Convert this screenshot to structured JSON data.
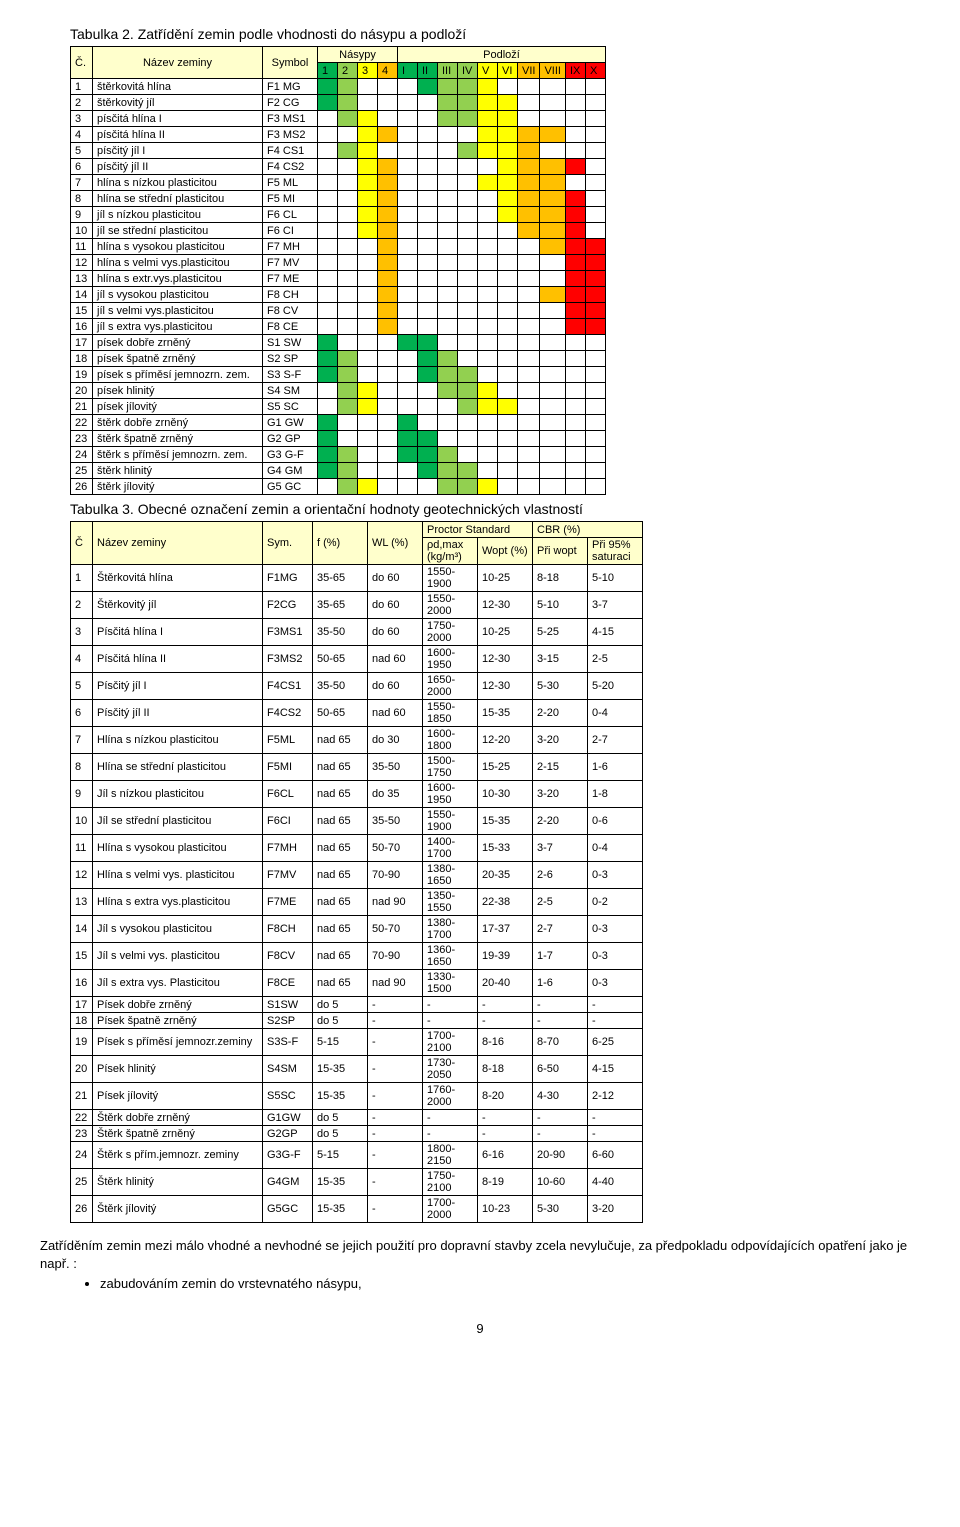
{
  "table2": {
    "caption": "Tabulka 2. Zatřídění zemin podle vhodnosti do násypu a podloží",
    "header": {
      "c": "Č.",
      "name": "Název zeminy",
      "sym": "Symbol",
      "nasypy": "Násypy",
      "podlozi": "Podloží",
      "cols_n": [
        "1",
        "2",
        "3",
        "4"
      ],
      "cols_p": [
        "I",
        "II",
        "III",
        "IV",
        "V",
        "VI",
        "VII",
        "VIII",
        "IX",
        "X"
      ]
    },
    "nasypy_colors": [
      "#00b050",
      "#92d050",
      "#ffff00",
      "#ffc000"
    ],
    "podlozi_colors": [
      "#00b050",
      "#00b050",
      "#92d050",
      "#92d050",
      "#ffff00",
      "#ffff00",
      "#ffc000",
      "#ffc000",
      "#ff0000",
      "#ff0000"
    ],
    "rows": [
      {
        "n": "1",
        "name": "štěrkovitá hlína",
        "s": "F1 MG",
        "na": [
          1,
          1,
          0,
          0
        ],
        "po": [
          0,
          1,
          1,
          1,
          1,
          0,
          0,
          0,
          0,
          0
        ]
      },
      {
        "n": "2",
        "name": "štěrkovitý jíl",
        "s": "F2 CG",
        "na": [
          1,
          1,
          0,
          0
        ],
        "po": [
          0,
          0,
          1,
          1,
          1,
          1,
          0,
          0,
          0,
          0
        ]
      },
      {
        "n": "3",
        "name": "písčitá hlína I",
        "s": "F3 MS1",
        "na": [
          0,
          1,
          1,
          0
        ],
        "po": [
          0,
          0,
          1,
          1,
          1,
          1,
          0,
          0,
          0,
          0
        ]
      },
      {
        "n": "4",
        "name": "písčitá hlína II",
        "s": "F3 MS2",
        "na": [
          0,
          0,
          1,
          1
        ],
        "po": [
          0,
          0,
          0,
          0,
          1,
          1,
          1,
          1,
          0,
          0
        ]
      },
      {
        "n": "5",
        "name": "písčitý jíl I",
        "s": "F4 CS1",
        "na": [
          0,
          1,
          1,
          0
        ],
        "po": [
          0,
          0,
          0,
          1,
          1,
          1,
          1,
          0,
          0,
          0
        ]
      },
      {
        "n": "6",
        "name": "písčitý jíl II",
        "s": "F4 CS2",
        "na": [
          0,
          0,
          1,
          1
        ],
        "po": [
          0,
          0,
          0,
          0,
          0,
          1,
          1,
          1,
          1,
          0
        ]
      },
      {
        "n": "7",
        "name": "hlína s nízkou plasticitou",
        "s": "F5 ML",
        "na": [
          0,
          0,
          1,
          1
        ],
        "po": [
          0,
          0,
          0,
          0,
          1,
          1,
          1,
          1,
          0,
          0
        ]
      },
      {
        "n": "8",
        "name": "hlína se střední plasticitou",
        "s": "F5 MI",
        "na": [
          0,
          0,
          1,
          1
        ],
        "po": [
          0,
          0,
          0,
          0,
          0,
          1,
          1,
          1,
          1,
          0
        ]
      },
      {
        "n": "9",
        "name": "jíl s nízkou plasticitou",
        "s": "F6 CL",
        "na": [
          0,
          0,
          1,
          1
        ],
        "po": [
          0,
          0,
          0,
          0,
          0,
          1,
          1,
          1,
          1,
          0
        ]
      },
      {
        "n": "10",
        "name": "jíl se střední plasticitou",
        "s": "F6 CI",
        "na": [
          0,
          0,
          1,
          1
        ],
        "po": [
          0,
          0,
          0,
          0,
          0,
          0,
          1,
          1,
          1,
          0
        ]
      },
      {
        "n": "11",
        "name": "hlína s vysokou plasticitou",
        "s": "F7 MH",
        "na": [
          0,
          0,
          0,
          1
        ],
        "po": [
          0,
          0,
          0,
          0,
          0,
          0,
          0,
          1,
          1,
          1
        ]
      },
      {
        "n": "12",
        "name": "hlína s velmi vys.plasticitou",
        "s": "F7 MV",
        "na": [
          0,
          0,
          0,
          1
        ],
        "po": [
          0,
          0,
          0,
          0,
          0,
          0,
          0,
          0,
          1,
          1
        ]
      },
      {
        "n": "13",
        "name": "hlína s extr.vys.plasticitou",
        "s": "F7 ME",
        "na": [
          0,
          0,
          0,
          1
        ],
        "po": [
          0,
          0,
          0,
          0,
          0,
          0,
          0,
          0,
          1,
          1
        ]
      },
      {
        "n": "14",
        "name": "jíl s vysokou plasticitou",
        "s": "F8 CH",
        "na": [
          0,
          0,
          0,
          1
        ],
        "po": [
          0,
          0,
          0,
          0,
          0,
          0,
          0,
          1,
          1,
          1
        ]
      },
      {
        "n": "15",
        "name": "jíl s velmi vys.plasticitou",
        "s": "F8 CV",
        "na": [
          0,
          0,
          0,
          1
        ],
        "po": [
          0,
          0,
          0,
          0,
          0,
          0,
          0,
          0,
          1,
          1
        ]
      },
      {
        "n": "16",
        "name": "jíl s extra vys.plasticitou",
        "s": "F8 CE",
        "na": [
          0,
          0,
          0,
          1
        ],
        "po": [
          0,
          0,
          0,
          0,
          0,
          0,
          0,
          0,
          1,
          1
        ]
      },
      {
        "n": "17",
        "name": "písek dobře zrněný",
        "s": "S1 SW",
        "na": [
          1,
          0,
          0,
          0
        ],
        "po": [
          1,
          1,
          0,
          0,
          0,
          0,
          0,
          0,
          0,
          0
        ]
      },
      {
        "n": "18",
        "name": "písek špatně zrněný",
        "s": "S2 SP",
        "na": [
          1,
          1,
          0,
          0
        ],
        "po": [
          0,
          1,
          1,
          0,
          0,
          0,
          0,
          0,
          0,
          0
        ]
      },
      {
        "n": "19",
        "name": "písek s příměsí jemnozrn. zem.",
        "s": "S3 S-F",
        "na": [
          1,
          1,
          0,
          0
        ],
        "po": [
          0,
          1,
          1,
          1,
          0,
          0,
          0,
          0,
          0,
          0
        ]
      },
      {
        "n": "20",
        "name": "písek hlinitý",
        "s": "S4 SM",
        "na": [
          0,
          1,
          1,
          0
        ],
        "po": [
          0,
          0,
          1,
          1,
          1,
          0,
          0,
          0,
          0,
          0
        ]
      },
      {
        "n": "21",
        "name": "písek jílovitý",
        "s": "S5 SC",
        "na": [
          0,
          1,
          1,
          0
        ],
        "po": [
          0,
          0,
          0,
          1,
          1,
          1,
          0,
          0,
          0,
          0
        ]
      },
      {
        "n": "22",
        "name": "štěrk dobře zrněný",
        "s": "G1 GW",
        "na": [
          1,
          0,
          0,
          0
        ],
        "po": [
          1,
          0,
          0,
          0,
          0,
          0,
          0,
          0,
          0,
          0
        ]
      },
      {
        "n": "23",
        "name": "štěrk špatně zrněný",
        "s": "G2 GP",
        "na": [
          1,
          0,
          0,
          0
        ],
        "po": [
          1,
          1,
          0,
          0,
          0,
          0,
          0,
          0,
          0,
          0
        ]
      },
      {
        "n": "24",
        "name": "štěrk s příměsí jemnozrn. zem.",
        "s": "G3 G-F",
        "na": [
          1,
          1,
          0,
          0
        ],
        "po": [
          1,
          1,
          1,
          0,
          0,
          0,
          0,
          0,
          0,
          0
        ]
      },
      {
        "n": "25",
        "name": "štěrk hlinitý",
        "s": "G4 GM",
        "na": [
          1,
          1,
          0,
          0
        ],
        "po": [
          0,
          1,
          1,
          1,
          0,
          0,
          0,
          0,
          0,
          0
        ]
      },
      {
        "n": "26",
        "name": "štěrk jílovitý",
        "s": "G5 GC",
        "na": [
          0,
          1,
          1,
          0
        ],
        "po": [
          0,
          0,
          1,
          1,
          1,
          0,
          0,
          0,
          0,
          0
        ]
      }
    ]
  },
  "table3": {
    "caption": "Tabulka 3. Obecné označení zemin a orientační hodnoty geotechnických vlastností",
    "header": {
      "c": "Č",
      "name": "Název zeminy",
      "sym": "Sym.",
      "f": "f (%)",
      "wl": "WL (%)",
      "proctor": "Proctor Standard",
      "cbr": "CBR (%)",
      "pd": "ρd,max (kg/m³)",
      "wopt": "Wopt (%)",
      "cbr1": "Při wopt",
      "cbr2": "Při 95% saturaci"
    },
    "header_bg": "#ffffcc",
    "rows": [
      [
        "1",
        "Štěrkovitá hlína",
        "F1MG",
        "35-65",
        "do 60",
        "1550-1900",
        "10-25",
        "8-18",
        "5-10"
      ],
      [
        "2",
        "Štěrkovitý jíl",
        "F2CG",
        "35-65",
        "do 60",
        "1550-2000",
        "12-30",
        "5-10",
        "3-7"
      ],
      [
        "3",
        "Písčitá hlína I",
        "F3MS1",
        "35-50",
        "do 60",
        "1750-2000",
        "10-25",
        "5-25",
        "4-15"
      ],
      [
        "4",
        "Písčitá hlína II",
        "F3MS2",
        "50-65",
        "nad 60",
        "1600-1950",
        "12-30",
        "3-15",
        "2-5"
      ],
      [
        "5",
        "Písčitý jíl I",
        "F4CS1",
        "35-50",
        "do 60",
        "1650-2000",
        "12-30",
        "5-30",
        "5-20"
      ],
      [
        "6",
        "Písčitý jíl II",
        "F4CS2",
        "50-65",
        "nad 60",
        "1550-1850",
        "15-35",
        "2-20",
        "0-4"
      ],
      [
        "7",
        "Hlína s nízkou plasticitou",
        "F5ML",
        "nad 65",
        "do 30",
        "1600-1800",
        "12-20",
        "3-20",
        "2-7"
      ],
      [
        "8",
        "Hlína se střední plasticitou",
        "F5MI",
        "nad 65",
        "35-50",
        "1500-1750",
        "15-25",
        "2-15",
        "1-6"
      ],
      [
        "9",
        "Jíl s nízkou plasticitou",
        "F6CL",
        "nad 65",
        "do 35",
        "1600-1950",
        "10-30",
        "3-20",
        "1-8"
      ],
      [
        "10",
        "Jíl se střední plasticitou",
        "F6CI",
        "nad 65",
        "35-50",
        "1550-1900",
        "15-35",
        "2-20",
        "0-6"
      ],
      [
        "11",
        "Hlína s vysokou plasticitou",
        "F7MH",
        "nad 65",
        "50-70",
        "1400-1700",
        "15-33",
        "3-7",
        "0-4"
      ],
      [
        "12",
        "Hlína s velmi vys. plasticitou",
        "F7MV",
        "nad 65",
        "70-90",
        "1380-1650",
        "20-35",
        "2-6",
        "0-3"
      ],
      [
        "13",
        "Hlína s extra vys.plasticitou",
        "F7ME",
        "nad 65",
        "nad 90",
        "1350-1550",
        "22-38",
        "2-5",
        "0-2"
      ],
      [
        "14",
        "Jíl s vysokou plasticitou",
        "F8CH",
        "nad 65",
        "50-70",
        "1380-1700",
        "17-37",
        "2-7",
        "0-3"
      ],
      [
        "15",
        "Jíl s velmi vys. plasticitou",
        "F8CV",
        "nad 65",
        "70-90",
        "1360-1650",
        "19-39",
        "1-7",
        "0-3"
      ],
      [
        "16",
        "Jíl s extra vys. Plasticitou",
        "F8CE",
        "nad 65",
        "nad 90",
        "1330-1500",
        "20-40",
        "1-6",
        "0-3"
      ],
      [
        "17",
        "Písek dobře zrněný",
        "S1SW",
        "do 5",
        "-",
        "-",
        "-",
        "-",
        "-"
      ],
      [
        "18",
        "Písek špatně zrněný",
        "S2SP",
        "do 5",
        "-",
        "-",
        "-",
        "-",
        "-"
      ],
      [
        "19",
        "Písek s příměsí jemnozr.zeminy",
        "S3S-F",
        "5-15",
        "-",
        "1700-2100",
        "8-16",
        "8-70",
        "6-25"
      ],
      [
        "20",
        "Písek hlinitý",
        "S4SM",
        "15-35",
        "-",
        "1730-2050",
        "8-18",
        "6-50",
        "4-15"
      ],
      [
        "21",
        "Písek jílovitý",
        "S5SC",
        "15-35",
        "-",
        "1760-2000",
        "8-20",
        "4-30",
        "2-12"
      ],
      [
        "22",
        "Štěrk dobře zrněný",
        "G1GW",
        "do 5",
        "-",
        "-",
        "-",
        "-",
        "-"
      ],
      [
        "23",
        "Štěrk špatně zrněný",
        "G2GP",
        "do 5",
        "-",
        "-",
        "-",
        "-",
        "-"
      ],
      [
        "24",
        "Štěrk s přím.jemnozr. zeminy",
        "G3G-F",
        "5-15",
        "-",
        "1800-2150",
        "6-16",
        "20-90",
        "6-60"
      ],
      [
        "25",
        "Štěrk hlinitý",
        "G4GM",
        "15-35",
        "-",
        "1750-2100",
        "8-19",
        "10-60",
        "4-40"
      ],
      [
        "26",
        "Štěrk jílovitý",
        "G5GC",
        "15-35",
        "-",
        "1700-2000",
        "10-23",
        "5-30",
        "3-20"
      ]
    ]
  },
  "paragraph": "Zatříděním zemin mezi málo vhodné a nevhodné se jejich použití pro dopravní stavby zcela nevylučuje, za předpokladu odpovídajících opatření jako je např. :",
  "bullet": "zabudováním zemin do vrstevnatého násypu,",
  "page_num": "9"
}
